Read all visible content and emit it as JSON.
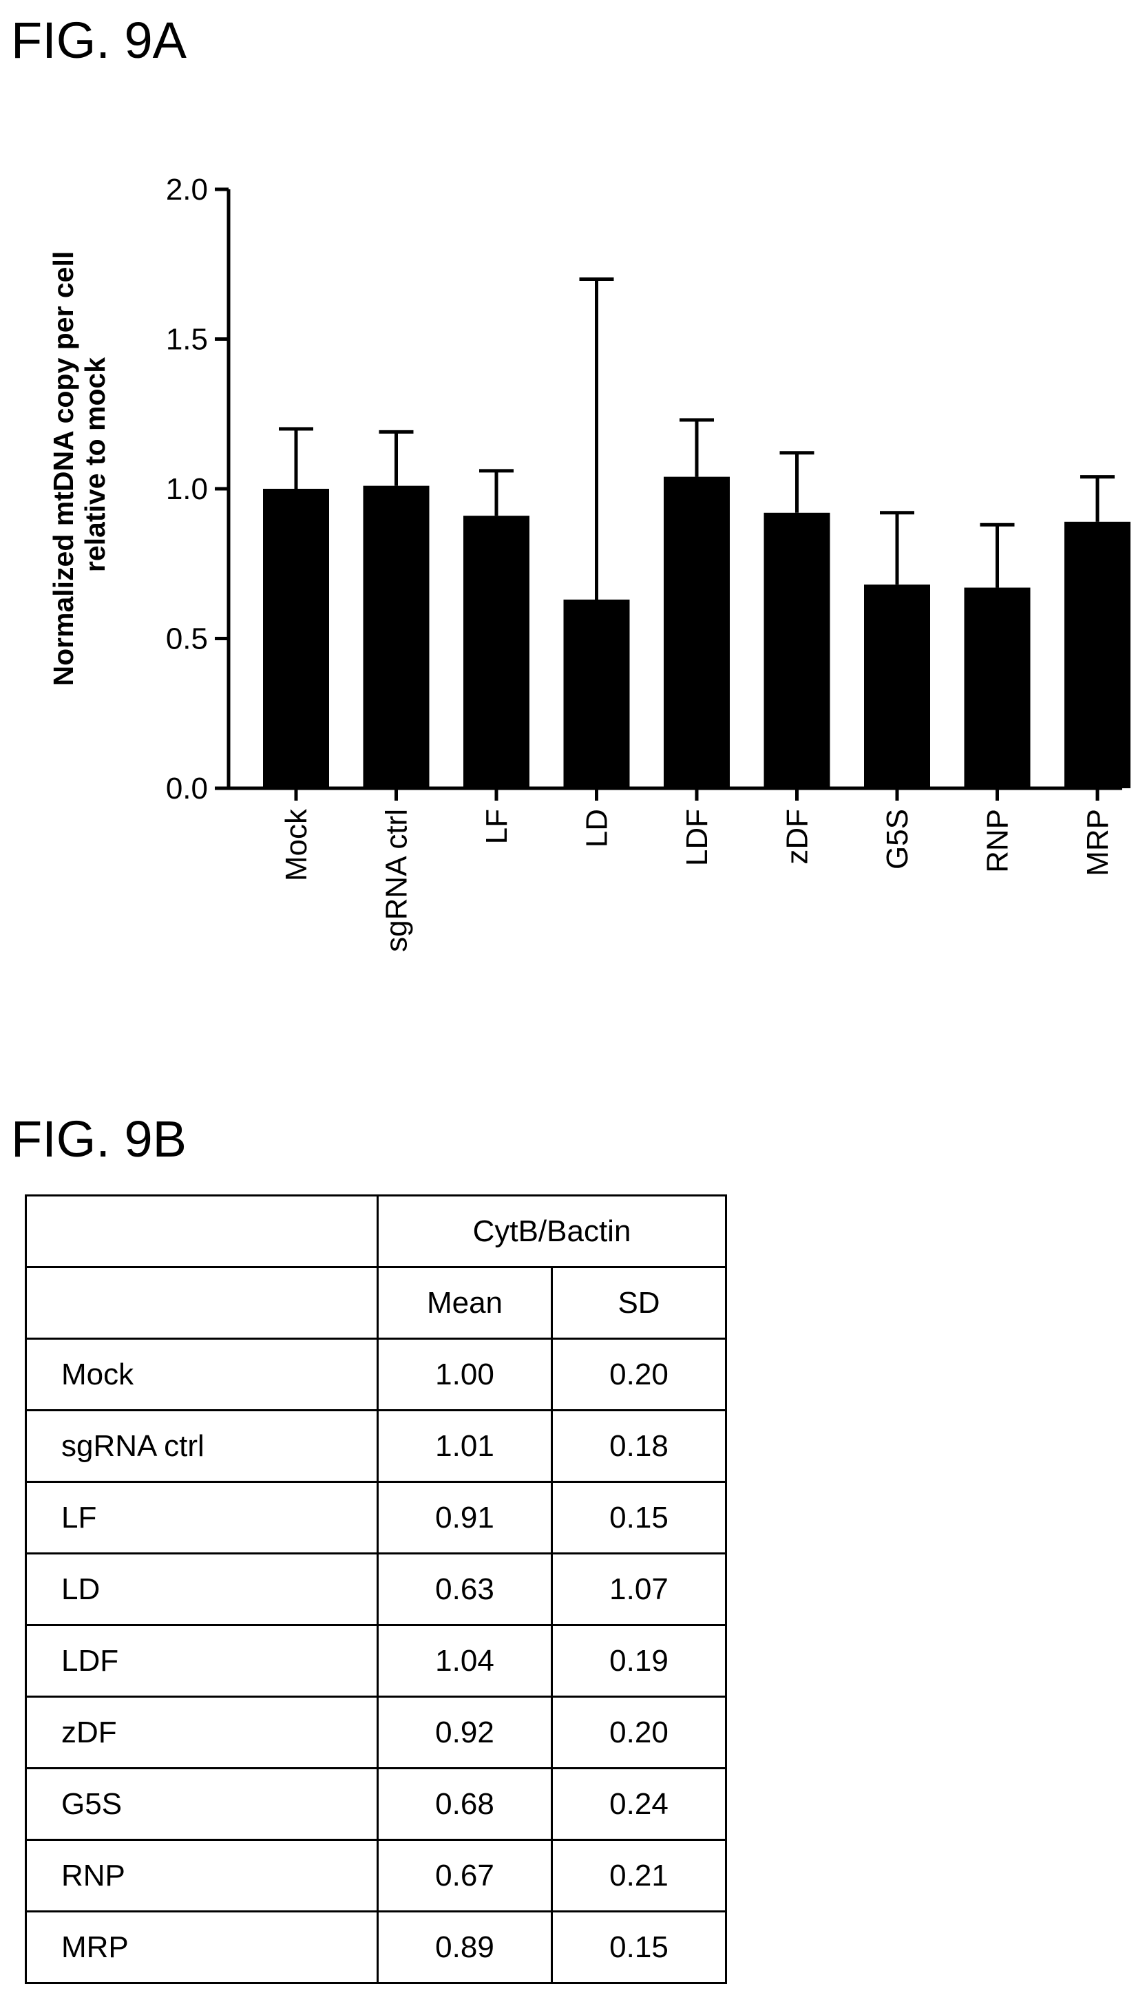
{
  "fig_a_label": "FIG. 9A",
  "fig_b_label": "FIG. 9B",
  "chart_data": {
    "type": "bar",
    "ylabel_line1": "Normalized mtDNA copy per cell",
    "ylabel_line2": "relative to mock",
    "ylim": [
      0,
      2.0
    ],
    "yticks": [
      "0.0",
      "0.5",
      "1.0",
      "1.5",
      "2.0"
    ],
    "categories": [
      "Mock",
      "sgRNA ctrl",
      "LF",
      "LD",
      "LDF",
      "zDF",
      "G5S",
      "RNP",
      "MRP"
    ],
    "values": [
      1.0,
      1.01,
      0.91,
      0.63,
      1.04,
      0.92,
      0.68,
      0.67,
      0.89
    ],
    "errors": [
      0.2,
      0.18,
      0.15,
      1.07,
      0.19,
      0.2,
      0.24,
      0.21,
      0.15
    ],
    "bar_color": "#000000"
  },
  "table": {
    "group_header": "CytB/Bactin",
    "col_mean": "Mean",
    "col_sd": "SD",
    "rows": [
      {
        "name": "Mock",
        "mean": "1.00",
        "sd": "0.20"
      },
      {
        "name": "sgRNA ctrl",
        "mean": "1.01",
        "sd": "0.18"
      },
      {
        "name": "LF",
        "mean": "0.91",
        "sd": "0.15"
      },
      {
        "name": "LD",
        "mean": "0.63",
        "sd": "1.07"
      },
      {
        "name": "LDF",
        "mean": "1.04",
        "sd": "0.19"
      },
      {
        "name": "zDF",
        "mean": "0.92",
        "sd": "0.20"
      },
      {
        "name": "G5S",
        "mean": "0.68",
        "sd": "0.24"
      },
      {
        "name": "RNP",
        "mean": "0.67",
        "sd": "0.21"
      },
      {
        "name": "MRP",
        "mean": "0.89",
        "sd": "0.15"
      }
    ]
  }
}
